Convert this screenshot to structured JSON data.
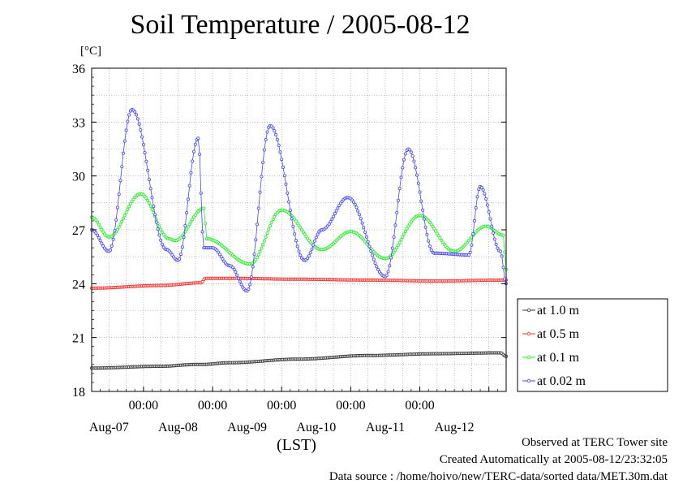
{
  "chart_data": {
    "type": "line",
    "title": "Soil Temperature / 2005-08-12",
    "yunit": "[°C]",
    "xlabel": "(LST)",
    "ylim": [
      18,
      36
    ],
    "yticks": [
      18,
      21,
      24,
      27,
      30,
      33,
      36
    ],
    "xlim_hours": [
      0,
      144
    ],
    "xtick_time_label": "00:00",
    "xtick_dates": [
      "Aug-07",
      "Aug-08",
      "Aug-09",
      "Aug-10",
      "Aug-11",
      "Aug-12"
    ],
    "grid": true,
    "legend_position": "right",
    "series": [
      {
        "name": "at 1.0 m",
        "color": "#333333",
        "x": [
          0,
          24,
          36,
          38,
          48,
          72,
          96,
          120,
          142,
          144
        ],
        "y": [
          19.3,
          19.4,
          19.5,
          19.5,
          19.6,
          19.8,
          20.0,
          20.1,
          20.15,
          19.95
        ]
      },
      {
        "name": "at 0.5 m",
        "color": "#ff2a2a",
        "x": [
          0,
          24,
          38,
          39.5,
          48,
          72,
          96,
          120,
          144
        ],
        "y": [
          23.75,
          23.9,
          24.05,
          24.3,
          24.3,
          24.25,
          24.2,
          24.15,
          24.2
        ]
      },
      {
        "name": "at 0.1 m",
        "color": "#22ee22",
        "x": [
          0,
          6,
          17,
          27,
          29,
          39,
          40,
          55,
          66,
          80,
          90,
          102,
          114,
          126,
          137,
          143,
          144
        ],
        "y": [
          27.7,
          26.6,
          29.0,
          26.5,
          26.4,
          28.2,
          26.5,
          25.1,
          28.1,
          25.9,
          26.9,
          25.4,
          27.8,
          25.8,
          27.2,
          26.7,
          24.8
        ]
      },
      {
        "name": "at 0.02 m",
        "color": "#4444ff",
        "x": [
          0,
          6,
          14,
          26,
          30,
          37,
          39,
          42,
          48,
          54,
          62,
          74,
          80,
          89,
          102,
          110,
          119,
          131,
          135,
          142,
          144
        ],
        "y": [
          27.0,
          25.8,
          33.7,
          25.9,
          25.3,
          32.1,
          26.0,
          26.0,
          25.0,
          23.6,
          32.8,
          25.3,
          27.0,
          28.8,
          24.4,
          31.5,
          25.7,
          25.6,
          29.4,
          25.8,
          24.0
        ]
      }
    ]
  },
  "footer": {
    "observed": "Observed at TERC Tower site",
    "created": "Created Automatically at 2005-08-12/23:32:05",
    "source": "Data source : /home/hoivo/new/TERC-data/sorted  data/MET.30m.dat"
  }
}
